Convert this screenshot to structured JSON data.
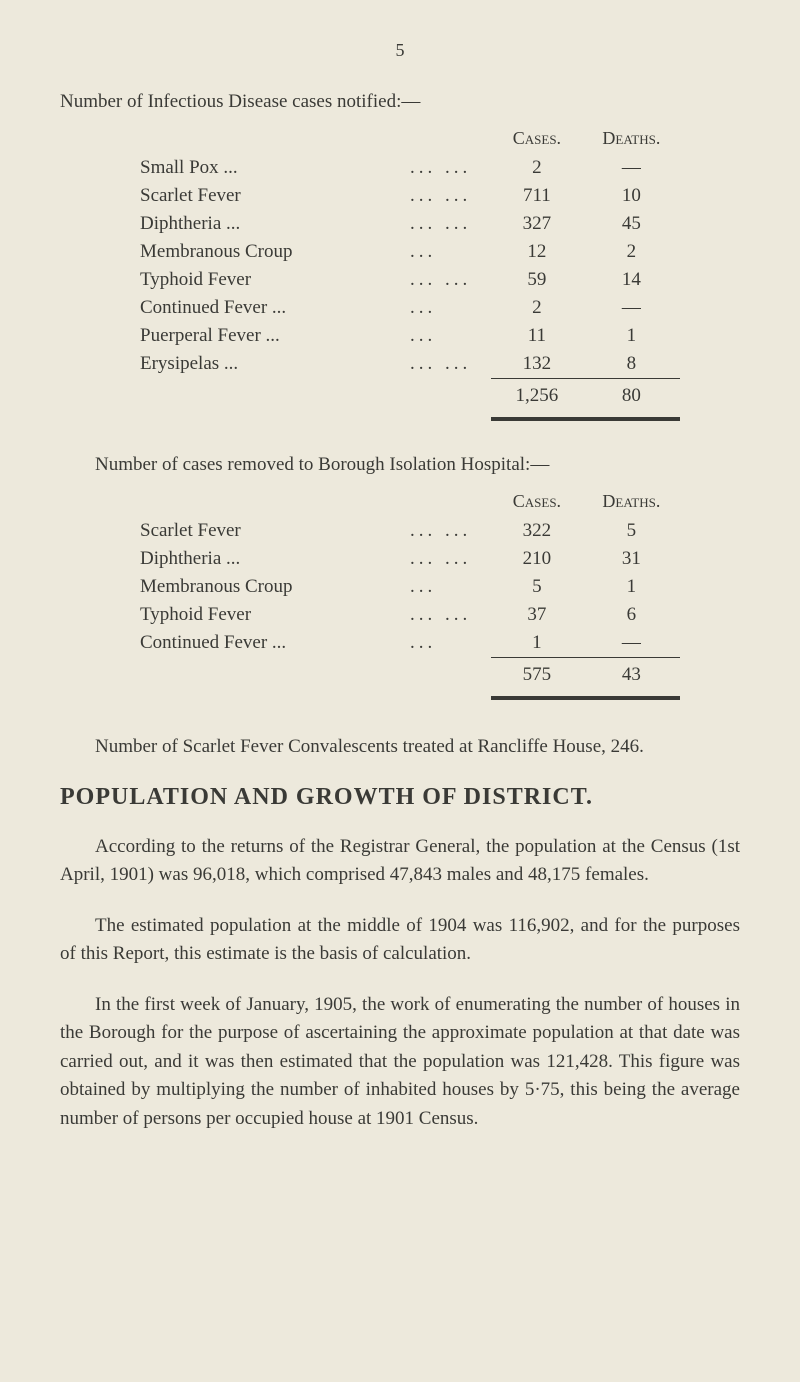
{
  "page_number": "5",
  "table1": {
    "intro": "Number of Infectious Disease cases notified:—",
    "headers": {
      "cases": "Cases.",
      "deaths": "Deaths."
    },
    "rows": [
      {
        "label": "Small Pox ...",
        "dots": "...   ...",
        "cases": "2",
        "deaths": "—"
      },
      {
        "label": "Scarlet Fever",
        "dots": "...   ...",
        "cases": "711",
        "deaths": "10"
      },
      {
        "label": "Diphtheria ...",
        "dots": "...   ...",
        "cases": "327",
        "deaths": "45"
      },
      {
        "label": "Membranous Croup",
        "dots": "...",
        "cases": "12",
        "deaths": "2"
      },
      {
        "label": "Typhoid Fever",
        "dots": "...   ...",
        "cases": "59",
        "deaths": "14"
      },
      {
        "label": "Continued Fever  ...",
        "dots": "...",
        "cases": "2",
        "deaths": "—"
      },
      {
        "label": "Puerperal Fever   ...",
        "dots": "...",
        "cases": "11",
        "deaths": "1"
      },
      {
        "label": "Erysipelas ...",
        "dots": "...   ...",
        "cases": "132",
        "deaths": "8"
      }
    ],
    "total": {
      "cases": "1,256",
      "deaths": "80"
    }
  },
  "table2": {
    "intro": "Number of cases removed to Borough Isolation Hospital:—",
    "headers": {
      "cases": "Cases.",
      "deaths": "Deaths."
    },
    "rows": [
      {
        "label": "Scarlet Fever",
        "dots": "...   ...",
        "cases": "322",
        "deaths": "5"
      },
      {
        "label": "Diphtheria ...",
        "dots": "...   ...",
        "cases": "210",
        "deaths": "31"
      },
      {
        "label": "Membranous Croup",
        "dots": "...",
        "cases": "5",
        "deaths": "1"
      },
      {
        "label": "Typhoid Fever",
        "dots": "...   ...",
        "cases": "37",
        "deaths": "6"
      },
      {
        "label": "Continued Fever   ...",
        "dots": "...",
        "cases": "1",
        "deaths": "—"
      }
    ],
    "total": {
      "cases": "575",
      "deaths": "43"
    }
  },
  "paragraph_rancliffe": "Number of Scarlet Fever Convalescents treated at Rancliffe House, 246.",
  "heading": "POPULATION AND GROWTH OF DISTRICT.",
  "para1": "According to the returns of the Registrar General, the population at the Census (1st April, 1901) was 96,018, which comprised 47,843 males and 48,175 females.",
  "para2": "The estimated population at the middle of 1904 was 116,902, and for the purposes of this Report, this estimate is the basis of calculation.",
  "para3": "In the first week of January, 1905, the work of enumerating the number of houses in the Borough for the purpose of ascertaining the approximate population at that date was carried out, and it was then estimated that the population was 121,428. This figure was obtained by multiplying the number of inhabited houses by 5·75, this being the average number of persons per occupied house at 1901 Census."
}
